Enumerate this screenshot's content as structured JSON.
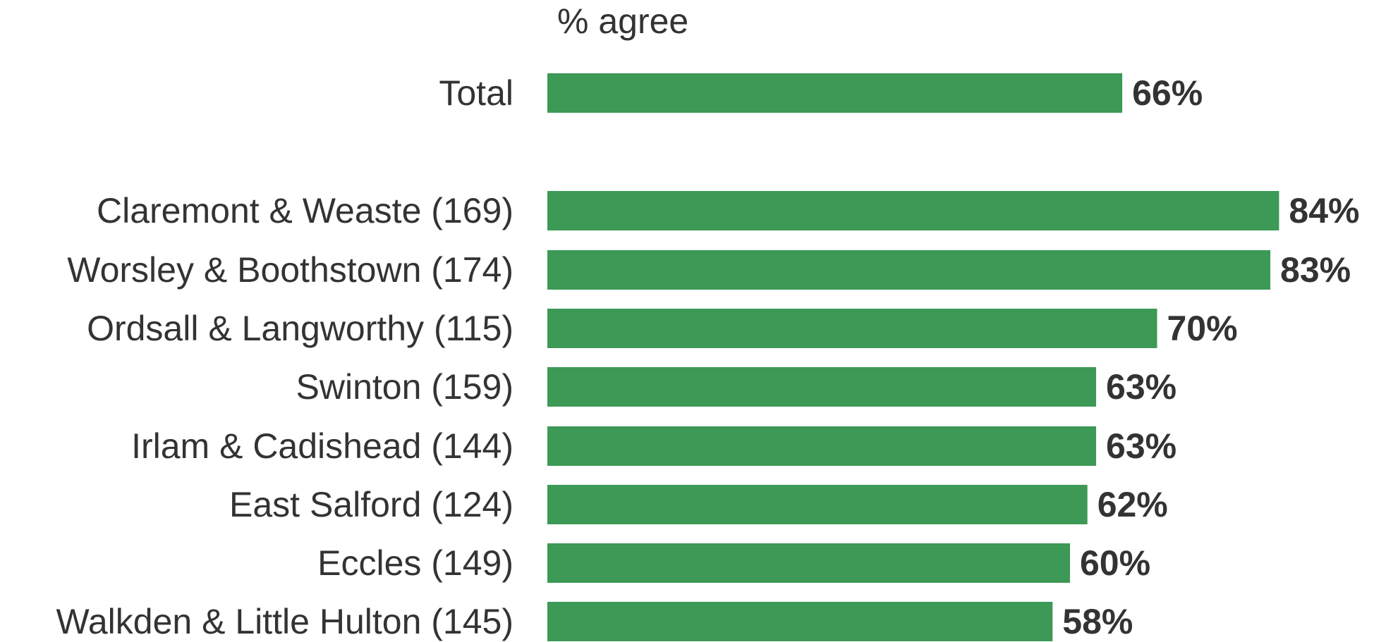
{
  "chart_data": {
    "type": "bar",
    "orientation": "horizontal",
    "value_caption": "% agree",
    "categories": [
      "Total",
      "Claremont & Weaste (169)",
      "Worsley & Boothstown (174)",
      "Ordsall & Langworthy (115)",
      "Swinton (159)",
      "Irlam & Cadishead (144)",
      "East Salford (124)",
      "Eccles (149)",
      "Walkden & Little Hulton (145)"
    ],
    "values": [
      66,
      84,
      83,
      70,
      63,
      63,
      62,
      60,
      58
    ],
    "value_labels": [
      "66%",
      "84%",
      "83%",
      "70%",
      "63%",
      "63%",
      "62%",
      "60%",
      "58%"
    ],
    "xlim": [
      0,
      100
    ],
    "grid": false,
    "legend": "none",
    "colors": {
      "bar": "#3c9956",
      "text": "#333333"
    }
  }
}
